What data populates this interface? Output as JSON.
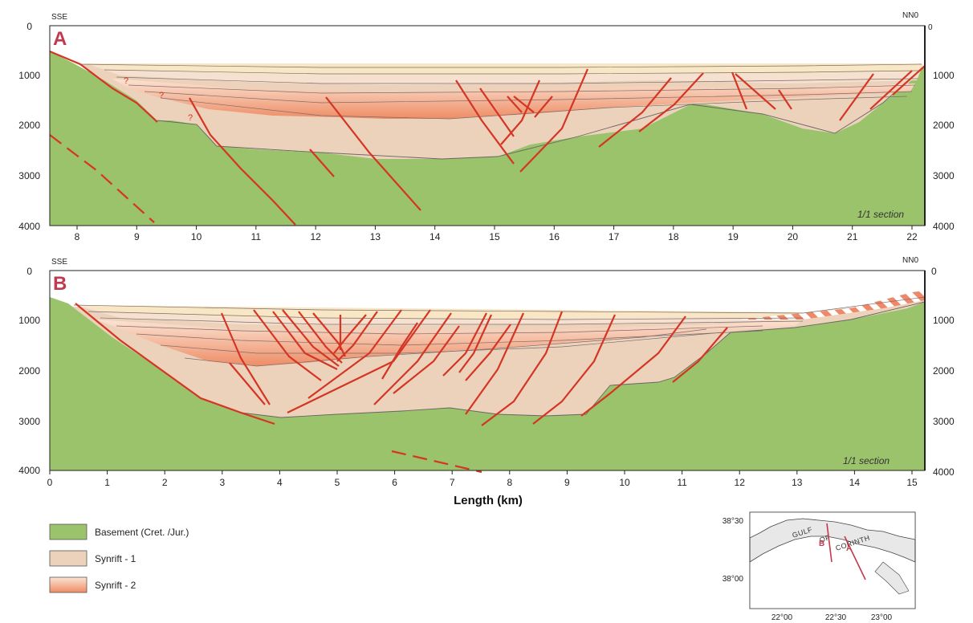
{
  "sections": [
    {
      "panel_letter": "A",
      "left_direction": "SSE",
      "right_direction": "NN0",
      "scale_note": "1/1 section",
      "depth_ticks": [
        "0",
        "1000",
        "2000",
        "3000",
        "4000"
      ],
      "right_depth_ticks": [
        "0",
        "1000",
        "2000",
        "3000",
        "4000"
      ],
      "distance_ticks": [
        "8",
        "9",
        "10",
        "11",
        "12",
        "13",
        "14",
        "15",
        "16",
        "17",
        "18",
        "19",
        "20",
        "21",
        "22"
      ],
      "query_marks": [
        "?",
        "?",
        "?"
      ]
    },
    {
      "panel_letter": "B",
      "left_direction": "SSE",
      "right_direction": "NN0",
      "scale_note": "1/1 section",
      "depth_ticks": [
        "0",
        "1000",
        "2000",
        "3000",
        "4000"
      ],
      "right_depth_ticks": [
        "0",
        "1000",
        "2000",
        "3000",
        "4000"
      ],
      "distance_ticks": [
        "0",
        "1",
        "2",
        "3",
        "4",
        "5",
        "6",
        "7",
        "8",
        "9",
        "10",
        "11",
        "12",
        "13",
        "14",
        "15"
      ]
    }
  ],
  "x_axis_title": "Length (km)",
  "legend": [
    {
      "label": "Basement (Cret. /Jur.)",
      "color": "#9bc36b"
    },
    {
      "label": "Synrift - 1",
      "color": "#ecd2bb"
    },
    {
      "label": "Synrift - 2",
      "color": "#f0a07a"
    }
  ],
  "inset_map": {
    "lat_labels": [
      "38°30",
      "38°00"
    ],
    "lon_labels": [
      "22°00",
      "22°30",
      "23°00"
    ],
    "gulf_words": [
      "GULF",
      "OF",
      "CORINTH"
    ],
    "profile_labels": [
      "B",
      "A"
    ],
    "land_color": "#ffffff",
    "sea_color": "#e8e8e8",
    "profile_color": "#c23a4e"
  },
  "colors": {
    "basement": "#9bc36b",
    "synrift1": "#ecd2bb",
    "synrift2_dark": "#ea8f6e",
    "synrift2_light": "#f4b595",
    "upper_layer": "#f6e0cf",
    "top_layer": "#f8e6c4",
    "fault": "#d43524"
  }
}
